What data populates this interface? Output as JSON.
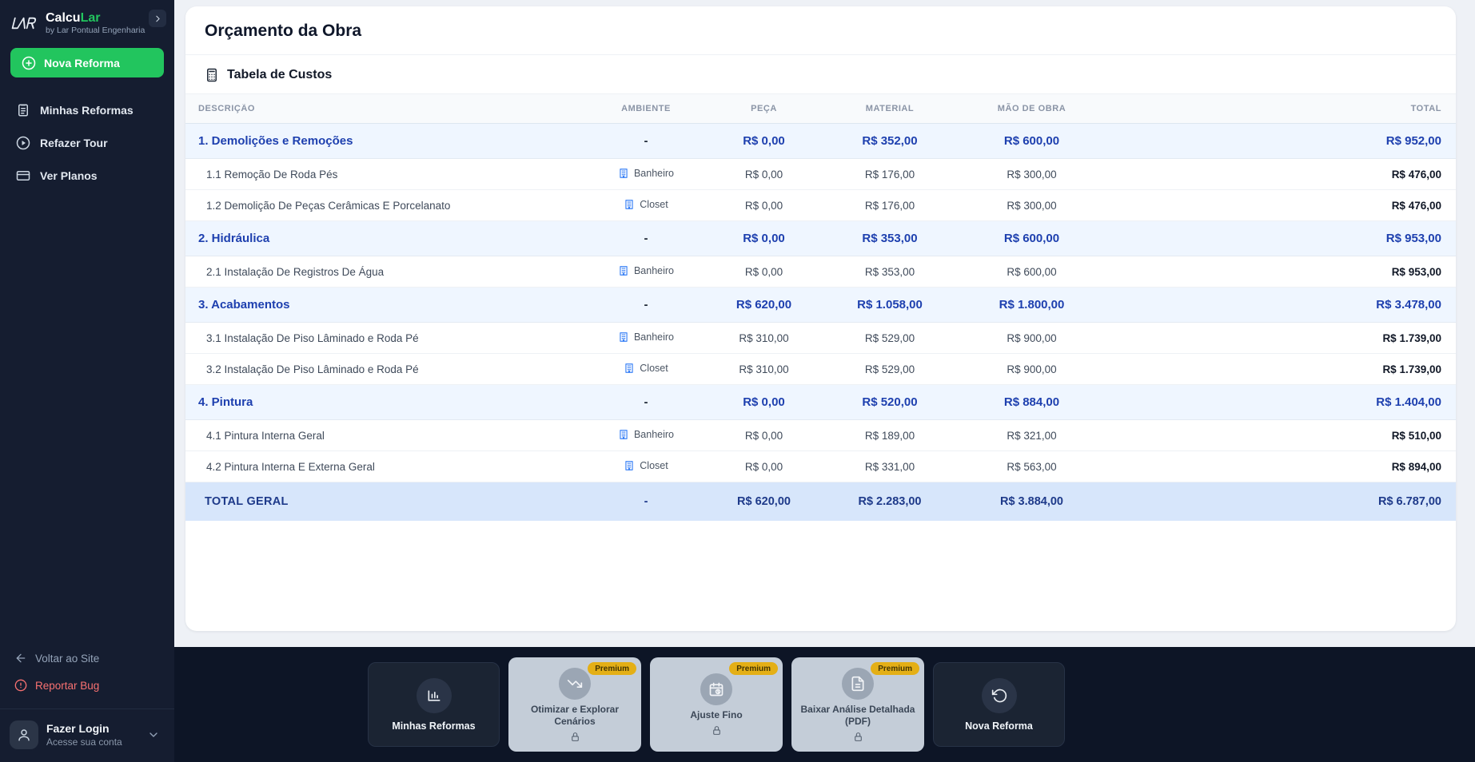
{
  "sidebar": {
    "logo": {
      "monogram": "LAR",
      "brand_primary": "Calcu",
      "brand_accent": "Lar",
      "subtitle": "by Lar Pontual Engenharia"
    },
    "new_reform_button": {
      "label": "Nova Reforma",
      "icon": "plus-circle-icon"
    },
    "menu": [
      {
        "label": "Minhas Reformas",
        "icon": "clipboard-list-icon"
      },
      {
        "label": "Refazer Tour",
        "icon": "play-circle-icon"
      },
      {
        "label": "Ver Planos",
        "icon": "credit-card-icon"
      }
    ],
    "back_link": {
      "label": "Voltar ao Site",
      "icon": "arrow-left-icon"
    },
    "report_bug": {
      "label": "Reportar Bug",
      "icon": "alert-circle-icon"
    },
    "login": {
      "title": "Fazer Login",
      "subtitle": "Acesse sua conta",
      "icon": "user-icon"
    }
  },
  "main": {
    "page_title": "Orçamento da Obra",
    "section": {
      "title": "Tabela de Custos",
      "icon": "calculator-icon"
    },
    "table": {
      "headers": [
        "DESCRIÇÃO",
        "AMBIENTE",
        "PEÇA",
        "MATERIAL",
        "MÃO DE OBRA",
        "TOTAL"
      ],
      "ambiente_icon": "building-icon",
      "rows": [
        {
          "type": "category",
          "description": "1. Demolições e Remoções",
          "ambiente": "-",
          "peca": "R$ 0,00",
          "material": "R$ 352,00",
          "mao_de_obra": "R$ 600,00",
          "total": "R$ 952,00"
        },
        {
          "type": "item",
          "description": "1.1 Remoção De Roda Pés",
          "ambiente": "Banheiro",
          "peca": "R$ 0,00",
          "material": "R$ 176,00",
          "mao_de_obra": "R$ 300,00",
          "total": "R$ 476,00"
        },
        {
          "type": "item",
          "description": "1.2 Demolição De Peças Cerâmicas E Porcelanato",
          "ambiente": "Closet",
          "peca": "R$ 0,00",
          "material": "R$ 176,00",
          "mao_de_obra": "R$ 300,00",
          "total": "R$ 476,00"
        },
        {
          "type": "category",
          "description": "2. Hidráulica",
          "ambiente": "-",
          "peca": "R$ 0,00",
          "material": "R$ 353,00",
          "mao_de_obra": "R$ 600,00",
          "total": "R$ 953,00"
        },
        {
          "type": "item",
          "description": "2.1 Instalação De Registros De Água",
          "ambiente": "Banheiro",
          "peca": "R$ 0,00",
          "material": "R$ 353,00",
          "mao_de_obra": "R$ 600,00",
          "total": "R$ 953,00"
        },
        {
          "type": "category",
          "description": "3. Acabamentos",
          "ambiente": "-",
          "peca": "R$ 620,00",
          "material": "R$ 1.058,00",
          "mao_de_obra": "R$ 1.800,00",
          "total": "R$ 3.478,00"
        },
        {
          "type": "item",
          "description": "3.1 Instalação De Piso Lâminado e Roda Pé",
          "ambiente": "Banheiro",
          "peca": "R$ 310,00",
          "material": "R$ 529,00",
          "mao_de_obra": "R$ 900,00",
          "total": "R$ 1.739,00"
        },
        {
          "type": "item",
          "description": "3.2 Instalação De Piso Lâminado e Roda Pé",
          "ambiente": "Closet",
          "peca": "R$ 310,00",
          "material": "R$ 529,00",
          "mao_de_obra": "R$ 900,00",
          "total": "R$ 1.739,00"
        },
        {
          "type": "category",
          "description": "4. Pintura",
          "ambiente": "-",
          "peca": "R$ 0,00",
          "material": "R$ 520,00",
          "mao_de_obra": "R$ 884,00",
          "total": "R$ 1.404,00"
        },
        {
          "type": "item",
          "description": "4.1 Pintura Interna Geral",
          "ambiente": "Banheiro",
          "peca": "R$ 0,00",
          "material": "R$ 189,00",
          "mao_de_obra": "R$ 321,00",
          "total": "R$ 510,00"
        },
        {
          "type": "item",
          "description": "4.2 Pintura Interna E Externa Geral",
          "ambiente": "Closet",
          "peca": "R$ 0,00",
          "material": "R$ 331,00",
          "mao_de_obra": "R$ 563,00",
          "total": "R$ 894,00"
        },
        {
          "type": "total",
          "description": "TOTAL GERAL",
          "ambiente": "-",
          "peca": "R$ 620,00",
          "material": "R$ 2.283,00",
          "mao_de_obra": "R$ 3.884,00",
          "total": "R$ 6.787,00"
        }
      ]
    }
  },
  "footer": {
    "premium_badge": "Premium",
    "buttons": [
      {
        "label": "Minhas Reformas",
        "icon": "bar-chart-icon",
        "premium": false
      },
      {
        "label": "Otimizar e Explorar Cenários",
        "icon": "trending-down-icon",
        "premium": true
      },
      {
        "label": "Ajuste Fino",
        "icon": "calendar-clock-icon",
        "premium": true
      },
      {
        "label": "Baixar Análise Detalhada (PDF)",
        "icon": "file-text-icon",
        "premium": true
      },
      {
        "label": "Nova Reforma",
        "icon": "rotate-ccw-icon",
        "premium": false
      }
    ]
  },
  "colors": {
    "accent_green": "#22c55e",
    "premium_yellow": "#e4af16",
    "category_blue": "#1e40af",
    "total_row_blue": "#1e3a8a",
    "danger_red": "#f87171",
    "ambiente_icon_blue": "#3b82f6",
    "sidebar_bg": "#151d30",
    "footer_bg": "#0d1526"
  }
}
